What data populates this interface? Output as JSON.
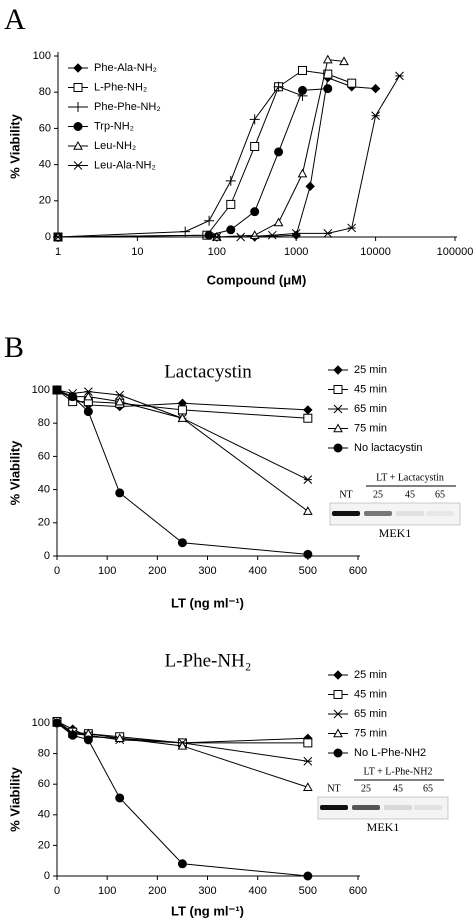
{
  "chart_data": [
    {
      "type": "line",
      "panel_label": "A",
      "x_label": "Compound (μM)",
      "y_label": "% Viability",
      "log_x": true,
      "xlim": [
        1,
        100000
      ],
      "xticks": [
        1,
        10,
        100,
        1000,
        10000,
        100000
      ],
      "ylim": [
        0,
        100
      ],
      "yticks": [
        0,
        20,
        40,
        60,
        80,
        100
      ],
      "series": [
        {
          "name": "Phe-Ala-NH₂",
          "color": "#000000",
          "marker": "diamond",
          "x": [
            1,
            100,
            300,
            1000,
            1500,
            2500,
            5000,
            10000
          ],
          "values": [
            0,
            0,
            0,
            1,
            28,
            88,
            83,
            82
          ]
        },
        {
          "name": "L-Phe-NH₂",
          "color": "#000000",
          "marker": "square-open",
          "x": [
            1,
            75,
            150,
            300,
            600,
            1200,
            2500,
            5000
          ],
          "values": [
            0,
            1,
            18,
            50,
            83,
            92,
            90,
            85
          ]
        },
        {
          "name": "Phe-Phe-NH₂",
          "color": "#000000",
          "marker": "plus",
          "x": [
            1,
            40,
            80,
            150,
            300,
            600,
            1200
          ],
          "values": [
            0,
            3,
            9,
            31,
            65,
            83,
            78
          ]
        },
        {
          "name": "Trp-NH₂",
          "color": "#000000",
          "marker": "circle",
          "x": [
            1,
            80,
            150,
            300,
            600,
            1200,
            2500
          ],
          "values": [
            0,
            1,
            4,
            14,
            47,
            81,
            82
          ]
        },
        {
          "name": "Leu-NH₂",
          "color": "#000000",
          "marker": "triangle-open",
          "x": [
            1,
            100,
            300,
            600,
            1200,
            2500,
            4000
          ],
          "values": [
            0,
            0,
            1,
            8,
            35,
            98,
            97
          ]
        },
        {
          "name": "Leu-Ala-NH₂",
          "color": "#000000",
          "marker": "asterisk",
          "x": [
            1,
            100,
            200,
            500,
            1000,
            2500,
            5000,
            10000,
            20000
          ],
          "values": [
            0,
            0,
            0,
            1,
            2,
            2,
            5,
            67,
            89
          ]
        }
      ]
    },
    {
      "type": "line",
      "panel_label": "B",
      "title": "Lactacystin",
      "x_label": "LT (ng ml⁻¹)",
      "y_label": "% Viability",
      "xlim": [
        0,
        600
      ],
      "xticks": [
        0,
        100,
        200,
        300,
        400,
        500,
        600
      ],
      "ylim": [
        0,
        100
      ],
      "yticks": [
        0,
        20,
        40,
        60,
        80,
        100
      ],
      "series": [
        {
          "name": "25 min",
          "color": "#000000",
          "marker": "diamond",
          "x": [
            0,
            31.25,
            62.5,
            125,
            250,
            500
          ],
          "values": [
            100,
            95,
            91,
            90,
            92,
            88
          ]
        },
        {
          "name": "45 min",
          "color": "#000000",
          "marker": "square-open",
          "x": [
            0,
            31.25,
            62.5,
            125,
            250,
            500
          ],
          "values": [
            100,
            93,
            93,
            92,
            88,
            83
          ]
        },
        {
          "name": "65 min",
          "color": "#000000",
          "marker": "asterisk",
          "x": [
            0,
            31.25,
            62.5,
            125,
            250,
            500
          ],
          "values": [
            100,
            98,
            99,
            97,
            83,
            46
          ]
        },
        {
          "name": "75 min",
          "color": "#000000",
          "marker": "triangle-open",
          "x": [
            0,
            31.25,
            62.5,
            125,
            250,
            500
          ],
          "values": [
            100,
            96,
            96,
            93,
            83,
            27
          ]
        },
        {
          "name": "No lactacystin",
          "color": "#000000",
          "marker": "circle",
          "x": [
            0,
            31.25,
            62.5,
            125,
            250,
            500
          ],
          "values": [
            100,
            96,
            87,
            38,
            8,
            1
          ]
        }
      ],
      "inset": {
        "header": "LT + Lactacystin",
        "lanes": [
          "NT",
          "25",
          "45",
          "65"
        ],
        "caption": "MEK1"
      }
    },
    {
      "type": "line",
      "title": "L-Phe-NH₂",
      "x_label": "LT (ng ml⁻¹)",
      "y_label": "% Viability",
      "xlim": [
        0,
        600
      ],
      "xticks": [
        0,
        100,
        200,
        300,
        400,
        500,
        600
      ],
      "ylim": [
        0,
        100
      ],
      "yticks": [
        0,
        20,
        40,
        60,
        80,
        100
      ],
      "series": [
        {
          "name": "25 min",
          "color": "#000000",
          "marker": "diamond",
          "x": [
            0,
            31.25,
            62.5,
            125,
            250,
            500
          ],
          "values": [
            101,
            96,
            91,
            90,
            87,
            90
          ]
        },
        {
          "name": "45 min",
          "color": "#000000",
          "marker": "square-open",
          "x": [
            0,
            31.25,
            62.5,
            125,
            250,
            500
          ],
          "values": [
            101,
            94,
            93,
            91,
            87,
            87
          ]
        },
        {
          "name": "65 min",
          "color": "#000000",
          "marker": "asterisk",
          "x": [
            0,
            31.25,
            62.5,
            125,
            250,
            500
          ],
          "values": [
            101,
            93,
            92,
            89,
            87,
            75
          ]
        },
        {
          "name": "75 min",
          "color": "#000000",
          "marker": "triangle-open",
          "x": [
            0,
            31.25,
            62.5,
            125,
            250,
            500
          ],
          "values": [
            100,
            93,
            93,
            90,
            85,
            58
          ]
        },
        {
          "name": "No L-Phe-NH2",
          "color": "#000000",
          "marker": "circle",
          "x": [
            0,
            31.25,
            62.5,
            125,
            250,
            500
          ],
          "values": [
            100,
            92,
            89,
            51,
            8,
            0
          ]
        }
      ],
      "inset": {
        "header": "LT + L-Phe-NH2",
        "lanes": [
          "NT",
          "25",
          "45",
          "65"
        ],
        "caption": "MEK1"
      }
    }
  ]
}
